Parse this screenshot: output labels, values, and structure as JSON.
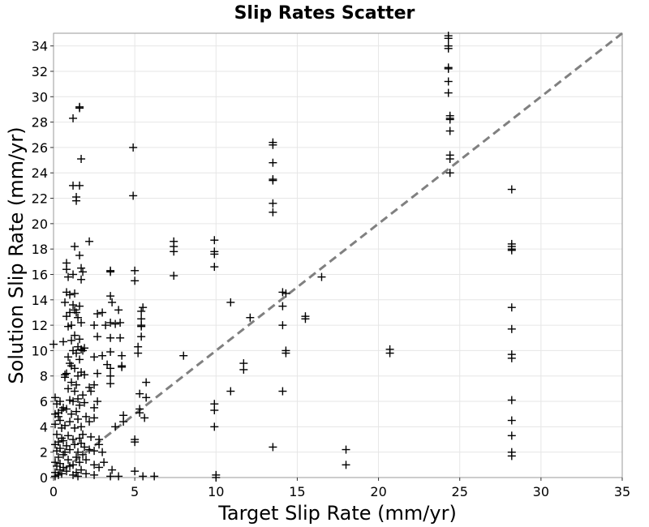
{
  "chart_data": {
    "type": "scatter",
    "title": "Slip Rates Scatter",
    "xlabel": "Target Slip Rate (mm/yr)",
    "ylabel": "Solution Slip Rate (mm/yr)",
    "xlim": [
      0,
      35
    ],
    "ylim": [
      0,
      35
    ],
    "xticks": [
      0,
      5,
      10,
      15,
      20,
      25,
      30,
      35
    ],
    "yticks": [
      0,
      2,
      4,
      6,
      8,
      10,
      12,
      14,
      16,
      18,
      20,
      22,
      24,
      26,
      28,
      30,
      32,
      34
    ],
    "grid": true,
    "marker": "+",
    "marker_color": "#000000",
    "reference_line": {
      "from": [
        0,
        0
      ],
      "to": [
        35,
        35
      ],
      "style": "dashed",
      "color": "#808080"
    },
    "points": [
      [
        0.0,
        10.5
      ],
      [
        0.1,
        6.3
      ],
      [
        0.1,
        5.0
      ],
      [
        0.1,
        4.2
      ],
      [
        0.1,
        2.6
      ],
      [
        0.1,
        1.2
      ],
      [
        0.1,
        0.4
      ],
      [
        0.1,
        0.1
      ],
      [
        0.2,
        5.8
      ],
      [
        0.2,
        3.4
      ],
      [
        0.2,
        2.1
      ],
      [
        0.2,
        0.9
      ],
      [
        0.3,
        5.1
      ],
      [
        0.3,
        4.8
      ],
      [
        0.3,
        2.8
      ],
      [
        0.3,
        1.6
      ],
      [
        0.3,
        0.2
      ],
      [
        0.4,
        6.0
      ],
      [
        0.4,
        4.5
      ],
      [
        0.4,
        2.3
      ],
      [
        0.4,
        1.1
      ],
      [
        0.4,
        0.6
      ],
      [
        0.5,
        5.3
      ],
      [
        0.5,
        3.9
      ],
      [
        0.5,
        3.1
      ],
      [
        0.5,
        0.3
      ],
      [
        0.6,
        10.7
      ],
      [
        0.6,
        5.5
      ],
      [
        0.6,
        2.9
      ],
      [
        0.6,
        1.8
      ],
      [
        0.6,
        0.8
      ],
      [
        0.7,
        13.8
      ],
      [
        0.7,
        8.1
      ],
      [
        0.7,
        7.9
      ],
      [
        0.7,
        4.1
      ],
      [
        0.7,
        2.0
      ],
      [
        0.8,
        16.9
      ],
      [
        0.8,
        16.4
      ],
      [
        0.8,
        14.6
      ],
      [
        0.8,
        12.7
      ],
      [
        0.8,
        8.2
      ],
      [
        0.8,
        5.4
      ],
      [
        0.8,
        2.5
      ],
      [
        0.8,
        0.5
      ],
      [
        0.9,
        15.8
      ],
      [
        0.9,
        11.9
      ],
      [
        0.9,
        9.5
      ],
      [
        0.9,
        7.0
      ],
      [
        0.9,
        3.3
      ],
      [
        0.9,
        1.4
      ],
      [
        1.0,
        14.4
      ],
      [
        1.0,
        13.0
      ],
      [
        1.0,
        9.0
      ],
      [
        1.0,
        6.1
      ],
      [
        1.0,
        4.4
      ],
      [
        1.0,
        2.2
      ],
      [
        1.0,
        0.9
      ],
      [
        1.1,
        12.0
      ],
      [
        1.1,
        10.8
      ],
      [
        1.1,
        8.8
      ],
      [
        1.1,
        7.5
      ],
      [
        1.1,
        5.0
      ],
      [
        1.2,
        28.3
      ],
      [
        1.2,
        23.0
      ],
      [
        1.2,
        16.0
      ],
      [
        1.2,
        13.6
      ],
      [
        1.2,
        10.0
      ],
      [
        1.2,
        6.0
      ],
      [
        1.2,
        3.0
      ],
      [
        1.2,
        1.0
      ],
      [
        1.2,
        0.2
      ],
      [
        1.3,
        18.2
      ],
      [
        1.3,
        14.5
      ],
      [
        1.3,
        13.2
      ],
      [
        1.3,
        11.2
      ],
      [
        1.3,
        8.6
      ],
      [
        1.3,
        6.8
      ],
      [
        1.3,
        3.9
      ],
      [
        1.3,
        2.6
      ],
      [
        1.4,
        22.1
      ],
      [
        1.4,
        21.8
      ],
      [
        1.4,
        13.0
      ],
      [
        1.4,
        9.8
      ],
      [
        1.4,
        7.3
      ],
      [
        1.4,
        5.2
      ],
      [
        1.4,
        1.6
      ],
      [
        1.4,
        0.4
      ],
      [
        1.5,
        12.6
      ],
      [
        1.5,
        10.3
      ],
      [
        1.5,
        8.0
      ],
      [
        1.5,
        6.2
      ],
      [
        1.5,
        4.6
      ],
      [
        1.5,
        2.0
      ],
      [
        1.5,
        0.1
      ],
      [
        1.6,
        29.2
      ],
      [
        1.6,
        29.1
      ],
      [
        1.6,
        23.0
      ],
      [
        1.6,
        17.5
      ],
      [
        1.6,
        13.5
      ],
      [
        1.6,
        10.9
      ],
      [
        1.6,
        9.3
      ],
      [
        1.6,
        5.7
      ],
      [
        1.6,
        3.1
      ],
      [
        1.6,
        1.2
      ],
      [
        1.7,
        25.1
      ],
      [
        1.7,
        16.5
      ],
      [
        1.7,
        15.6
      ],
      [
        1.7,
        12.2
      ],
      [
        1.7,
        10.1
      ],
      [
        1.7,
        8.3
      ],
      [
        1.7,
        4.0
      ],
      [
        1.7,
        2.7
      ],
      [
        1.7,
        0.6
      ],
      [
        1.8,
        16.2
      ],
      [
        1.8,
        10.0
      ],
      [
        1.8,
        6.5
      ],
      [
        1.8,
        3.4
      ],
      [
        1.8,
        1.8
      ],
      [
        1.9,
        10.2
      ],
      [
        1.9,
        8.1
      ],
      [
        1.9,
        5.9
      ],
      [
        1.9,
        2.4
      ],
      [
        2.0,
        4.8
      ],
      [
        2.0,
        1.4
      ],
      [
        2.0,
        0.3
      ],
      [
        2.2,
        18.6
      ],
      [
        2.2,
        7.1
      ],
      [
        2.2,
        4.4
      ],
      [
        2.2,
        2.2
      ],
      [
        2.3,
        6.8
      ],
      [
        2.3,
        3.2
      ],
      [
        2.5,
        12.0
      ],
      [
        2.5,
        9.5
      ],
      [
        2.5,
        7.3
      ],
      [
        2.5,
        5.5
      ],
      [
        2.5,
        4.7
      ],
      [
        2.5,
        2.1
      ],
      [
        2.5,
        1.0
      ],
      [
        2.5,
        0.2
      ],
      [
        2.7,
        12.9
      ],
      [
        2.7,
        11.1
      ],
      [
        2.7,
        8.2
      ],
      [
        2.7,
        6.0
      ],
      [
        2.8,
        3.0
      ],
      [
        2.8,
        2.6
      ],
      [
        2.8,
        0.8
      ],
      [
        3.0,
        13.0
      ],
      [
        3.0,
        9.6
      ],
      [
        3.0,
        2.0
      ],
      [
        3.1,
        1.2
      ],
      [
        3.2,
        12.0
      ],
      [
        3.3,
        8.9
      ],
      [
        3.5,
        16.2
      ],
      [
        3.5,
        16.3
      ],
      [
        3.5,
        14.3
      ],
      [
        3.5,
        12.2
      ],
      [
        3.5,
        11.0
      ],
      [
        3.5,
        9.9
      ],
      [
        3.5,
        8.6
      ],
      [
        3.5,
        8.0
      ],
      [
        3.5,
        7.4
      ],
      [
        3.5,
        0.1
      ],
      [
        3.6,
        13.8
      ],
      [
        3.6,
        0.6
      ],
      [
        3.8,
        12.1
      ],
      [
        3.8,
        4.0
      ],
      [
        4.0,
        13.2
      ],
      [
        4.0,
        0.1
      ],
      [
        4.1,
        12.2
      ],
      [
        4.1,
        11.0
      ],
      [
        4.2,
        9.6
      ],
      [
        4.2,
        8.8
      ],
      [
        4.2,
        8.7
      ],
      [
        4.3,
        4.9
      ],
      [
        4.3,
        4.4
      ],
      [
        4.9,
        26.0
      ],
      [
        4.9,
        22.2
      ],
      [
        5.0,
        16.3
      ],
      [
        5.0,
        15.5
      ],
      [
        5.0,
        3.0
      ],
      [
        5.0,
        2.8
      ],
      [
        5.0,
        0.5
      ],
      [
        5.2,
        10.3
      ],
      [
        5.2,
        9.8
      ],
      [
        5.3,
        6.6
      ],
      [
        5.3,
        5.4
      ],
      [
        5.3,
        5.1
      ],
      [
        5.4,
        13.1
      ],
      [
        5.4,
        12.5
      ],
      [
        5.4,
        12.0
      ],
      [
        5.4,
        11.9
      ],
      [
        5.4,
        11.1
      ],
      [
        5.5,
        13.4
      ],
      [
        5.5,
        0.1
      ],
      [
        5.6,
        4.7
      ],
      [
        5.7,
        7.5
      ],
      [
        5.7,
        6.3
      ],
      [
        6.2,
        0.1
      ],
      [
        7.4,
        18.6
      ],
      [
        7.4,
        18.2
      ],
      [
        7.4,
        17.8
      ],
      [
        7.4,
        15.9
      ],
      [
        8.0,
        9.6
      ],
      [
        9.9,
        18.7
      ],
      [
        9.9,
        17.8
      ],
      [
        9.9,
        17.6
      ],
      [
        9.9,
        16.6
      ],
      [
        9.9,
        5.8
      ],
      [
        9.9,
        5.3
      ],
      [
        9.9,
        4.0
      ],
      [
        10.0,
        0.2
      ],
      [
        10.0,
        0.0
      ],
      [
        10.9,
        13.8
      ],
      [
        10.9,
        6.8
      ],
      [
        11.7,
        9.0
      ],
      [
        11.7,
        8.5
      ],
      [
        12.1,
        12.6
      ],
      [
        13.5,
        26.4
      ],
      [
        13.5,
        26.2
      ],
      [
        13.5,
        24.8
      ],
      [
        13.5,
        23.5
      ],
      [
        13.5,
        23.4
      ],
      [
        13.5,
        21.6
      ],
      [
        13.5,
        20.9
      ],
      [
        13.5,
        2.4
      ],
      [
        14.1,
        14.6
      ],
      [
        14.1,
        13.5
      ],
      [
        14.1,
        12.0
      ],
      [
        14.1,
        6.8
      ],
      [
        14.3,
        14.5
      ],
      [
        14.3,
        10.0
      ],
      [
        14.3,
        9.8
      ],
      [
        15.5,
        12.7
      ],
      [
        15.5,
        12.5
      ],
      [
        16.5,
        15.8
      ],
      [
        18.0,
        2.2
      ],
      [
        18.0,
        1.0
      ],
      [
        20.7,
        10.1
      ],
      [
        20.7,
        9.8
      ],
      [
        24.3,
        34.8
      ],
      [
        24.3,
        34.6
      ],
      [
        24.3,
        34.0
      ],
      [
        24.3,
        33.8
      ],
      [
        24.3,
        32.3
      ],
      [
        24.3,
        32.2
      ],
      [
        24.3,
        31.2
      ],
      [
        24.3,
        30.3
      ],
      [
        24.4,
        28.5
      ],
      [
        24.4,
        28.3
      ],
      [
        24.4,
        28.2
      ],
      [
        24.4,
        27.3
      ],
      [
        24.4,
        25.4
      ],
      [
        24.4,
        25.1
      ],
      [
        24.4,
        24.0
      ],
      [
        28.2,
        22.7
      ],
      [
        28.2,
        18.4
      ],
      [
        28.2,
        18.2
      ],
      [
        28.2,
        18.0
      ],
      [
        28.2,
        17.9
      ],
      [
        28.2,
        13.4
      ],
      [
        28.2,
        11.7
      ],
      [
        28.2,
        9.7
      ],
      [
        28.2,
        9.4
      ],
      [
        28.2,
        6.1
      ],
      [
        28.2,
        4.5
      ],
      [
        28.2,
        3.3
      ],
      [
        28.2,
        2.0
      ],
      [
        28.2,
        1.7
      ]
    ]
  }
}
